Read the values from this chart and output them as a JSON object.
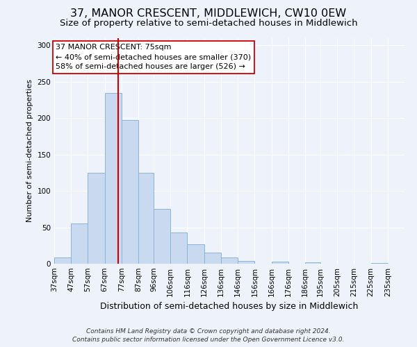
{
  "title": "37, MANOR CRESCENT, MIDDLEWICH, CW10 0EW",
  "subtitle": "Size of property relative to semi-detached houses in Middlewich",
  "xlabel": "Distribution of semi-detached houses by size in Middlewich",
  "ylabel": "Number of semi-detached properties",
  "bin_labels": [
    "37sqm",
    "47sqm",
    "57sqm",
    "67sqm",
    "77sqm",
    "87sqm",
    "96sqm",
    "106sqm",
    "116sqm",
    "126sqm",
    "136sqm",
    "146sqm",
    "156sqm",
    "166sqm",
    "176sqm",
    "186sqm",
    "195sqm",
    "205sqm",
    "215sqm",
    "225sqm",
    "235sqm"
  ],
  "bin_left_edges": [
    37,
    47,
    57,
    67,
    77,
    87,
    96,
    106,
    116,
    126,
    136,
    146,
    156,
    166,
    176,
    186,
    195,
    205,
    215,
    225,
    235
  ],
  "bin_widths": [
    10,
    10,
    10,
    10,
    10,
    9,
    10,
    10,
    10,
    10,
    10,
    10,
    10,
    10,
    10,
    9,
    10,
    10,
    10,
    10,
    10
  ],
  "bar_heights": [
    9,
    55,
    125,
    235,
    197,
    125,
    75,
    43,
    27,
    15,
    9,
    4,
    0,
    3,
    0,
    2,
    0,
    0,
    0,
    1,
    0
  ],
  "bar_color": "#c9daf0",
  "bar_edgecolor": "#8ab4d8",
  "property_size": 75,
  "vline_color": "#cc0000",
  "annotation_line1": "37 MANOR CRESCENT: 75sqm",
  "annotation_line2": "← 40% of semi-detached houses are smaller (370)",
  "annotation_line3": "58% of semi-detached houses are larger (526) →",
  "annotation_box_color": "#ffffff",
  "annotation_box_edgecolor": "#cc0000",
  "footer_line1": "Contains HM Land Registry data © Crown copyright and database right 2024.",
  "footer_line2": "Contains public sector information licensed under the Open Government Licence v3.0.",
  "ylim": [
    0,
    310
  ],
  "yticks": [
    0,
    50,
    100,
    150,
    200,
    250,
    300
  ],
  "xlim_left": 37,
  "xlim_right": 245,
  "background_color": "#eef2fb",
  "grid_color": "#ffffff",
  "title_fontsize": 11.5,
  "subtitle_fontsize": 9.5,
  "ylabel_fontsize": 8,
  "xlabel_fontsize": 9,
  "tick_fontsize": 7.5,
  "annotation_fontsize": 8,
  "footer_fontsize": 6.5
}
